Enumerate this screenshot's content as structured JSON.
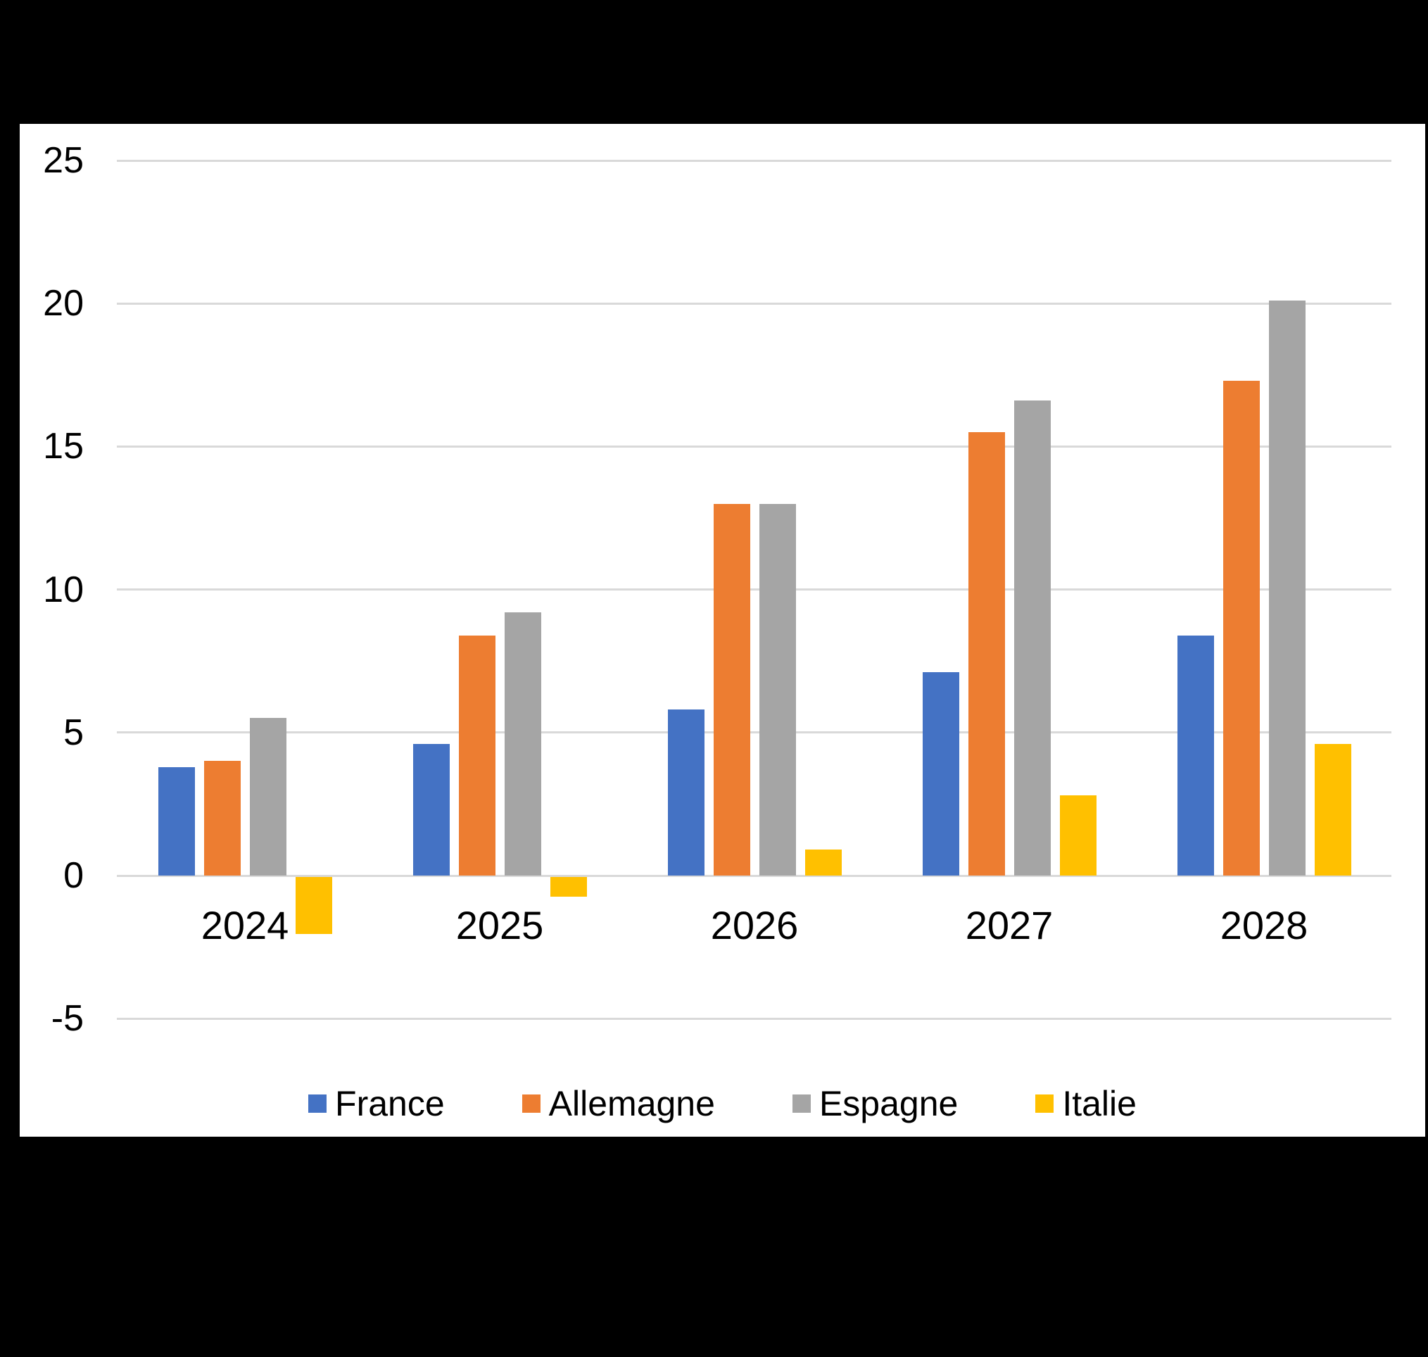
{
  "chart_data": {
    "type": "bar",
    "title": "",
    "categories": [
      "2024",
      "2025",
      "2026",
      "2027",
      "2028"
    ],
    "series": [
      {
        "name": "France",
        "color": "#4472C4",
        "values": [
          3.8,
          4.6,
          5.8,
          7.1,
          8.4
        ]
      },
      {
        "name": "Allemagne",
        "color": "#ED7D31",
        "values": [
          4.0,
          8.4,
          13.0,
          15.5,
          17.3
        ]
      },
      {
        "name": "Espagne",
        "color": "#A5A5A5",
        "values": [
          5.5,
          9.2,
          13.0,
          16.6,
          20.1
        ]
      },
      {
        "name": "Italie",
        "color": "#FFC000",
        "values": [
          -2.0,
          -0.7,
          0.9,
          2.8,
          4.6
        ]
      }
    ],
    "xlabel": "",
    "ylabel": "",
    "ylim": [
      -5,
      25
    ],
    "yticks": [
      25,
      20,
      15,
      10,
      5,
      0,
      -5
    ],
    "ytick_step": 5,
    "grid": true,
    "gridline_color": "#D9D9D9",
    "legend_position": "bottom",
    "plot_background": "#FFFFFF",
    "page_background": "#000000",
    "text_color": "#000000"
  }
}
